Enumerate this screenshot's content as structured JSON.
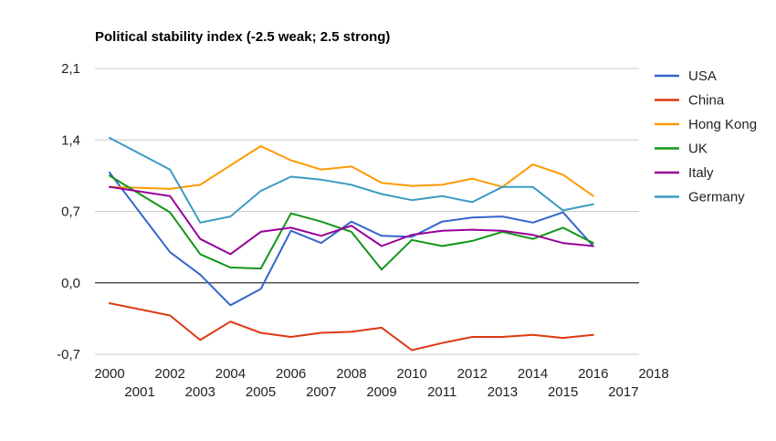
{
  "chart_data": {
    "type": "line",
    "title": "Political stability index (-2.5 weak; 2.5 strong)",
    "xlabel": "",
    "ylabel": "",
    "x_range": [
      2000,
      2018
    ],
    "ylim": [
      -0.7,
      2.1
    ],
    "y_ticks": [
      "2,1",
      "1,4",
      "0,7",
      "0,0",
      "-0,7"
    ],
    "y_tick_values": [
      2.1,
      1.4,
      0.7,
      0.0,
      -0.7
    ],
    "x_ticks_row1": [
      "2000",
      "2002",
      "2004",
      "2006",
      "2008",
      "2010",
      "2012",
      "2014",
      "2016",
      "2018"
    ],
    "x_ticks_row2": [
      "2001",
      "2003",
      "2005",
      "2007",
      "2009",
      "2011",
      "2013",
      "2015",
      "2017"
    ],
    "x": [
      2000,
      2002,
      2003,
      2004,
      2005,
      2006,
      2007,
      2008,
      2009,
      2010,
      2011,
      2012,
      2013,
      2014,
      2015,
      2016
    ],
    "grid": true,
    "legend_position": "right",
    "series": [
      {
        "name": "USA",
        "color": "#3366cc",
        "values": [
          1.08,
          0.3,
          0.08,
          -0.22,
          -0.06,
          0.51,
          0.39,
          0.6,
          0.46,
          0.45,
          0.6,
          0.64,
          0.65,
          0.59,
          0.69,
          0.36
        ]
      },
      {
        "name": "China",
        "color": "#dc3912",
        "values": [
          -0.2,
          -0.32,
          -0.56,
          -0.38,
          -0.49,
          -0.53,
          -0.49,
          -0.48,
          -0.44,
          -0.66,
          -0.59,
          -0.53,
          -0.53,
          -0.51,
          -0.54,
          -0.51
        ]
      },
      {
        "name": "Hong Kong",
        "color": "#ff9900",
        "values": [
          0.94,
          0.92,
          0.96,
          1.15,
          1.34,
          1.2,
          1.11,
          1.14,
          0.98,
          0.95,
          0.96,
          1.02,
          0.94,
          1.16,
          1.06,
          0.85
        ]
      },
      {
        "name": "UK",
        "color": "#109618",
        "values": [
          1.05,
          0.69,
          0.28,
          0.15,
          0.14,
          0.68,
          0.6,
          0.5,
          0.13,
          0.42,
          0.36,
          0.41,
          0.5,
          0.43,
          0.54,
          0.39
        ]
      },
      {
        "name": "Italy",
        "color": "#990099",
        "values": [
          0.94,
          0.85,
          0.43,
          0.28,
          0.5,
          0.54,
          0.46,
          0.56,
          0.36,
          0.47,
          0.51,
          0.52,
          0.51,
          0.47,
          0.39,
          0.36
        ]
      },
      {
        "name": "Germany",
        "color": "#3b9bc4",
        "values": [
          1.42,
          1.11,
          0.59,
          0.65,
          0.9,
          1.04,
          1.01,
          0.96,
          0.87,
          0.81,
          0.85,
          0.79,
          0.94,
          0.94,
          0.71,
          0.77
        ]
      }
    ]
  }
}
